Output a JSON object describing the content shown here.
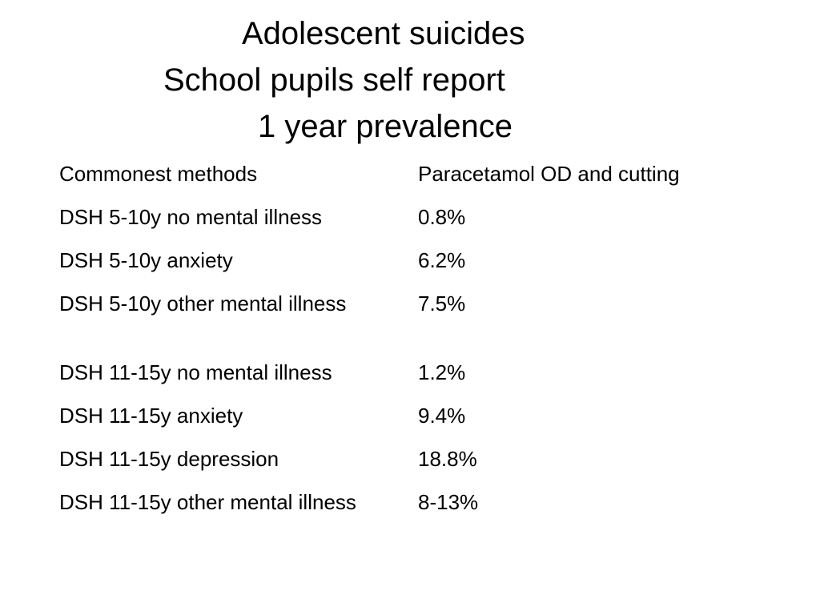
{
  "title": {
    "line1": "Adolescent suicides",
    "line2": "School pupils self report",
    "line3": "1 year prevalence"
  },
  "rows": [
    {
      "label": "Commonest methods",
      "value": "Paracetamol OD and cutting"
    },
    {
      "label": "DSH 5-10y no mental illness",
      "value": "0.8%"
    },
    {
      "label": "DSH 5-10y anxiety",
      "value": "6.2%"
    },
    {
      "label": "DSH 5-10y other mental illness",
      "value": "7.5%"
    },
    {
      "label": "DSH 11-15y no mental illness",
      "value": "1.2%"
    },
    {
      "label": "DSH 11-15y anxiety",
      "value": "9.4%"
    },
    {
      "label": "DSH 11-15y depression",
      "value": "18.8%"
    },
    {
      "label": "DSH 11-15y other mental illness",
      "value": "8-13%"
    }
  ]
}
